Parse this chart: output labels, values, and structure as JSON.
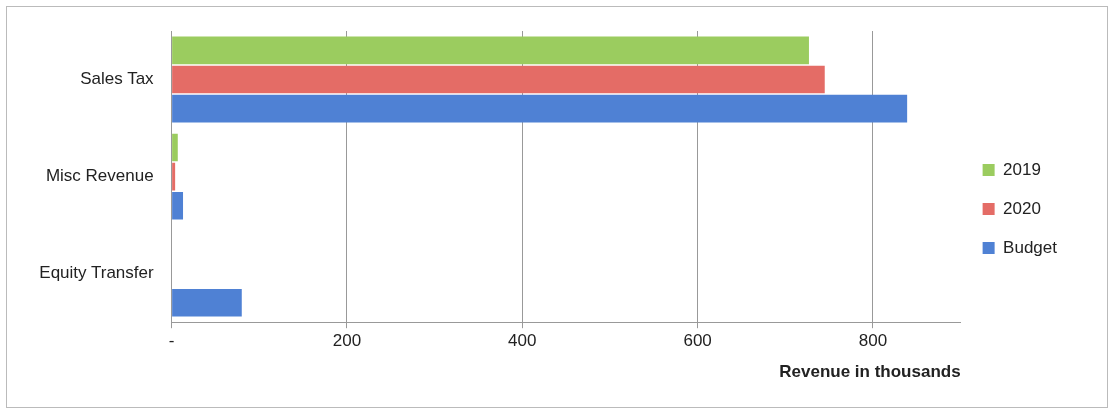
{
  "chart_data": {
    "type": "bar",
    "orientation": "horizontal",
    "categories": [
      "Sales Tax",
      "Misc Revenue",
      "Equity Transfer"
    ],
    "series": [
      {
        "name": "2019",
        "color": "#9bcc5f",
        "values": [
          727,
          7,
          0
        ]
      },
      {
        "name": "2020",
        "color": "#e46c66",
        "values": [
          745,
          4,
          0
        ]
      },
      {
        "name": "Budget",
        "color": "#4f81d4",
        "values": [
          839,
          13,
          80
        ]
      }
    ],
    "xlabel": "Revenue in thousands",
    "xlim": [
      0,
      900
    ],
    "xticks": [
      {
        "value": 0,
        "label": "-"
      },
      200,
      400,
      600,
      800
    ],
    "grid": "x",
    "legend": "right"
  }
}
